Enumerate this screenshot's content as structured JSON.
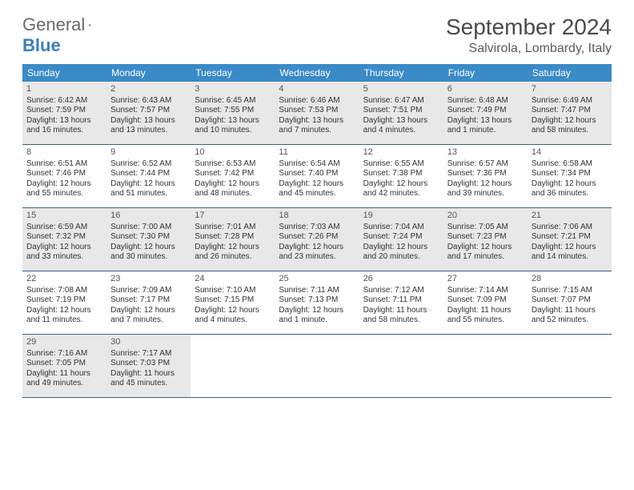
{
  "logo": {
    "general": "General",
    "blue": "Blue"
  },
  "title": "September 2024",
  "location": "Salvirola, Lombardy, Italy",
  "colors": {
    "header_bg": "#3a8ac7",
    "header_text": "#ffffff",
    "shaded_bg": "#e8e8e8",
    "border": "#3a5f8a",
    "text": "#333333"
  },
  "dow": [
    "Sunday",
    "Monday",
    "Tuesday",
    "Wednesday",
    "Thursday",
    "Friday",
    "Saturday"
  ],
  "weeks": [
    [
      {
        "n": "1",
        "sr": "6:42 AM",
        "ss": "7:59 PM",
        "dl": "13 hours and 16 minutes."
      },
      {
        "n": "2",
        "sr": "6:43 AM",
        "ss": "7:57 PM",
        "dl": "13 hours and 13 minutes."
      },
      {
        "n": "3",
        "sr": "6:45 AM",
        "ss": "7:55 PM",
        "dl": "13 hours and 10 minutes."
      },
      {
        "n": "4",
        "sr": "6:46 AM",
        "ss": "7:53 PM",
        "dl": "13 hours and 7 minutes."
      },
      {
        "n": "5",
        "sr": "6:47 AM",
        "ss": "7:51 PM",
        "dl": "13 hours and 4 minutes."
      },
      {
        "n": "6",
        "sr": "6:48 AM",
        "ss": "7:49 PM",
        "dl": "13 hours and 1 minute."
      },
      {
        "n": "7",
        "sr": "6:49 AM",
        "ss": "7:47 PM",
        "dl": "12 hours and 58 minutes."
      }
    ],
    [
      {
        "n": "8",
        "sr": "6:51 AM",
        "ss": "7:46 PM",
        "dl": "12 hours and 55 minutes."
      },
      {
        "n": "9",
        "sr": "6:52 AM",
        "ss": "7:44 PM",
        "dl": "12 hours and 51 minutes."
      },
      {
        "n": "10",
        "sr": "6:53 AM",
        "ss": "7:42 PM",
        "dl": "12 hours and 48 minutes."
      },
      {
        "n": "11",
        "sr": "6:54 AM",
        "ss": "7:40 PM",
        "dl": "12 hours and 45 minutes."
      },
      {
        "n": "12",
        "sr": "6:55 AM",
        "ss": "7:38 PM",
        "dl": "12 hours and 42 minutes."
      },
      {
        "n": "13",
        "sr": "6:57 AM",
        "ss": "7:36 PM",
        "dl": "12 hours and 39 minutes."
      },
      {
        "n": "14",
        "sr": "6:58 AM",
        "ss": "7:34 PM",
        "dl": "12 hours and 36 minutes."
      }
    ],
    [
      {
        "n": "15",
        "sr": "6:59 AM",
        "ss": "7:32 PM",
        "dl": "12 hours and 33 minutes."
      },
      {
        "n": "16",
        "sr": "7:00 AM",
        "ss": "7:30 PM",
        "dl": "12 hours and 30 minutes."
      },
      {
        "n": "17",
        "sr": "7:01 AM",
        "ss": "7:28 PM",
        "dl": "12 hours and 26 minutes."
      },
      {
        "n": "18",
        "sr": "7:03 AM",
        "ss": "7:26 PM",
        "dl": "12 hours and 23 minutes."
      },
      {
        "n": "19",
        "sr": "7:04 AM",
        "ss": "7:24 PM",
        "dl": "12 hours and 20 minutes."
      },
      {
        "n": "20",
        "sr": "7:05 AM",
        "ss": "7:23 PM",
        "dl": "12 hours and 17 minutes."
      },
      {
        "n": "21",
        "sr": "7:06 AM",
        "ss": "7:21 PM",
        "dl": "12 hours and 14 minutes."
      }
    ],
    [
      {
        "n": "22",
        "sr": "7:08 AM",
        "ss": "7:19 PM",
        "dl": "12 hours and 11 minutes."
      },
      {
        "n": "23",
        "sr": "7:09 AM",
        "ss": "7:17 PM",
        "dl": "12 hours and 7 minutes."
      },
      {
        "n": "24",
        "sr": "7:10 AM",
        "ss": "7:15 PM",
        "dl": "12 hours and 4 minutes."
      },
      {
        "n": "25",
        "sr": "7:11 AM",
        "ss": "7:13 PM",
        "dl": "12 hours and 1 minute."
      },
      {
        "n": "26",
        "sr": "7:12 AM",
        "ss": "7:11 PM",
        "dl": "11 hours and 58 minutes."
      },
      {
        "n": "27",
        "sr": "7:14 AM",
        "ss": "7:09 PM",
        "dl": "11 hours and 55 minutes."
      },
      {
        "n": "28",
        "sr": "7:15 AM",
        "ss": "7:07 PM",
        "dl": "11 hours and 52 minutes."
      }
    ],
    [
      {
        "n": "29",
        "sr": "7:16 AM",
        "ss": "7:05 PM",
        "dl": "11 hours and 49 minutes."
      },
      {
        "n": "30",
        "sr": "7:17 AM",
        "ss": "7:03 PM",
        "dl": "11 hours and 45 minutes."
      },
      null,
      null,
      null,
      null,
      null
    ]
  ],
  "labels": {
    "sunrise": "Sunrise: ",
    "sunset": "Sunset: ",
    "daylight": "Daylight: "
  }
}
